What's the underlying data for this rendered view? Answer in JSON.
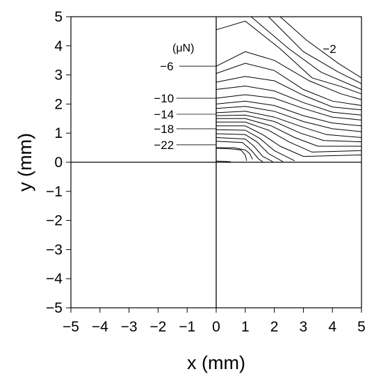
{
  "chart_data": {
    "type": "contour",
    "xlabel": "x (mm)",
    "ylabel": "y (mm)",
    "xlim": [
      -5,
      5
    ],
    "ylim": [
      -5,
      5
    ],
    "xticks": [
      "−5",
      "−4",
      "−3",
      "−2",
      "−1",
      "0",
      "1",
      "2",
      "3",
      "4",
      "5"
    ],
    "yticks": [
      "5",
      "4",
      "3",
      "2",
      "1",
      "0",
      "−1",
      "−2",
      "−3",
      "−4",
      "−5"
    ],
    "unit_label": "(μN)",
    "grid": false,
    "line_color": "#000000",
    "levels": [
      -2,
      -4,
      -6,
      -8,
      -10,
      -12,
      -14,
      -16,
      -18,
      -20,
      -22,
      -24
    ],
    "contour_labels": [
      {
        "text": "−2",
        "x": 3.9,
        "y": 3.9
      },
      {
        "text": "−6",
        "x": -1.7,
        "y": 3.3
      },
      {
        "text": "−10",
        "x": -1.8,
        "y": 2.2
      },
      {
        "text": "−14",
        "x": -1.8,
        "y": 1.65
      },
      {
        "text": "−18",
        "x": -1.8,
        "y": 1.15
      },
      {
        "text": "−22",
        "x": -1.8,
        "y": 0.6
      }
    ],
    "contour_lines": [
      {
        "level": -2,
        "points": [
          [
            2.2,
            5
          ],
          [
            3.1,
            4.2
          ],
          [
            4.2,
            3.4
          ],
          [
            5,
            2.9
          ]
        ]
      },
      {
        "level": -3,
        "points": [
          [
            1.8,
            5
          ],
          [
            3.0,
            3.8
          ],
          [
            4.2,
            3.1
          ],
          [
            5,
            2.7
          ]
        ]
      },
      {
        "level": -4,
        "points": [
          [
            1.2,
            5
          ],
          [
            2.5,
            3.9
          ],
          [
            3.6,
            3.1
          ],
          [
            5,
            2.5
          ]
        ]
      },
      {
        "level": -5,
        "points": [
          [
            0,
            4.55
          ],
          [
            1,
            4.85
          ],
          [
            2.2,
            3.9
          ],
          [
            3.3,
            2.9
          ],
          [
            4.3,
            2.6
          ],
          [
            5,
            2.35
          ]
        ]
      },
      {
        "level": -6,
        "points": [
          [
            0,
            3.3
          ],
          [
            1,
            3.8
          ],
          [
            2,
            3.5
          ],
          [
            3.2,
            2.8
          ],
          [
            4.3,
            2.35
          ],
          [
            5,
            2.15
          ]
        ]
      },
      {
        "level": -7,
        "points": [
          [
            0,
            3.05
          ],
          [
            1,
            3.4
          ],
          [
            2,
            3.15
          ],
          [
            3,
            2.5
          ],
          [
            4,
            2.1
          ],
          [
            5,
            1.95
          ]
        ]
      },
      {
        "level": -8,
        "points": [
          [
            0,
            2.75
          ],
          [
            1,
            2.95
          ],
          [
            2,
            2.8
          ],
          [
            3,
            2.3
          ],
          [
            4,
            1.9
          ],
          [
            5,
            1.8
          ]
        ]
      },
      {
        "level": -9,
        "points": [
          [
            0,
            2.5
          ],
          [
            1,
            2.62
          ],
          [
            2,
            2.45
          ],
          [
            3,
            2.05
          ],
          [
            4,
            1.72
          ],
          [
            5,
            1.62
          ]
        ]
      },
      {
        "level": -10,
        "points": [
          [
            0,
            2.2
          ],
          [
            1,
            2.32
          ],
          [
            2,
            2.2
          ],
          [
            3,
            1.85
          ],
          [
            4,
            1.55
          ],
          [
            5,
            1.45
          ]
        ]
      },
      {
        "level": -11,
        "points": [
          [
            0,
            2.0
          ],
          [
            1,
            2.1
          ],
          [
            2,
            1.95
          ],
          [
            3,
            1.6
          ],
          [
            4,
            1.35
          ],
          [
            5,
            1.25
          ]
        ]
      },
      {
        "level": -12,
        "points": [
          [
            0,
            1.85
          ],
          [
            1,
            1.92
          ],
          [
            2,
            1.75
          ],
          [
            3,
            1.4
          ],
          [
            4,
            1.15
          ],
          [
            5,
            1.05
          ]
        ]
      },
      {
        "level": -13,
        "points": [
          [
            0,
            1.7
          ],
          [
            1,
            1.75
          ],
          [
            2,
            1.55
          ],
          [
            3,
            1.2
          ],
          [
            3.8,
            0.95
          ],
          [
            5,
            0.85
          ]
        ]
      },
      {
        "level": -14,
        "points": [
          [
            0,
            1.6
          ],
          [
            1,
            1.62
          ],
          [
            2,
            1.4
          ],
          [
            2.9,
            1.0
          ],
          [
            3.7,
            0.75
          ],
          [
            5,
            0.7
          ]
        ]
      },
      {
        "level": -15,
        "points": [
          [
            0,
            1.5
          ],
          [
            1,
            1.5
          ],
          [
            1.9,
            1.25
          ],
          [
            2.7,
            0.85
          ],
          [
            3.5,
            0.55
          ],
          [
            5,
            0.55
          ]
        ]
      },
      {
        "level": -16,
        "points": [
          [
            0,
            1.38
          ],
          [
            1,
            1.38
          ],
          [
            1.8,
            1.1
          ],
          [
            2.5,
            0.7
          ],
          [
            3.3,
            0.35
          ],
          [
            5,
            0.4
          ]
        ]
      },
      {
        "level": -17,
        "points": [
          [
            0,
            1.25
          ],
          [
            1,
            1.25
          ],
          [
            1.6,
            0.95
          ],
          [
            2.2,
            0.55
          ],
          [
            3.0,
            0.2
          ],
          [
            5,
            0.25
          ]
        ]
      },
      {
        "level": -18,
        "points": [
          [
            0,
            1.12
          ],
          [
            1,
            1.1
          ],
          [
            1.5,
            0.82
          ],
          [
            2.0,
            0.4
          ],
          [
            2.7,
            0.05
          ]
        ]
      },
      {
        "level": -19,
        "points": [
          [
            0,
            0.98
          ],
          [
            1,
            0.95
          ],
          [
            1.4,
            0.7
          ],
          [
            1.8,
            0.3
          ],
          [
            2.3,
            0.02
          ]
        ]
      },
      {
        "level": -20,
        "points": [
          [
            0,
            0.85
          ],
          [
            1,
            0.8
          ],
          [
            1.3,
            0.55
          ],
          [
            1.6,
            0.2
          ],
          [
            1.95,
            0.02
          ]
        ]
      },
      {
        "level": -21,
        "points": [
          [
            0,
            0.72
          ],
          [
            0.9,
            0.68
          ],
          [
            1.2,
            0.42
          ],
          [
            1.45,
            0.12
          ],
          [
            1.6,
            0.02
          ]
        ]
      },
      {
        "level": -22,
        "points": [
          [
            0,
            0.5
          ],
          [
            0.6,
            0.5
          ],
          [
            1.0,
            0.42
          ],
          [
            1.15,
            0.3
          ],
          [
            1.25,
            0.1
          ]
        ]
      },
      {
        "level": -23,
        "points": [
          [
            0,
            0.48
          ],
          [
            0.5,
            0.46
          ],
          [
            0.85,
            0.42
          ],
          [
            1.0,
            0.25
          ],
          [
            1.05,
            0.05
          ]
        ]
      },
      {
        "level": -24,
        "points": [
          [
            0,
            0.04
          ],
          [
            0.5,
            0.02
          ]
        ]
      }
    ]
  }
}
